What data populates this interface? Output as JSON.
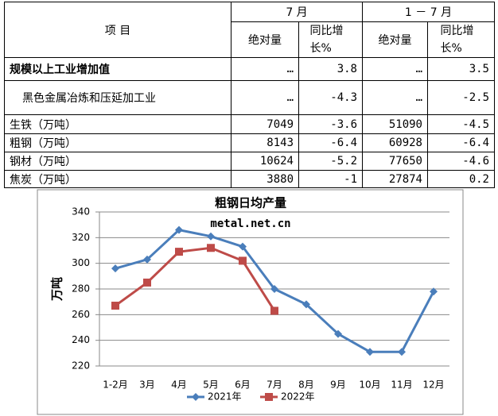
{
  "table": {
    "header": {
      "item": "项 目",
      "groups": [
        "7 月",
        "1 － 7 月"
      ],
      "columns": [
        "绝对量",
        "同比增长%",
        "绝对量",
        "同比增长%"
      ]
    },
    "rows": [
      [
        "规模以上工业增加值",
        "…",
        "3.8",
        "…",
        "3.5"
      ],
      [
        "黑色金属冶炼和压延加工业",
        "…",
        "-4.3",
        "…",
        "-2.5"
      ],
      [
        "生铁（万吨）",
        "7049",
        "-3.6",
        "51090",
        "-4.5"
      ],
      [
        "粗钢（万吨）",
        "8143",
        "-6.4",
        "60928",
        "-6.4"
      ],
      [
        "钢材（万吨）",
        "10624",
        "-5.2",
        "77650",
        "-4.6"
      ],
      [
        "焦炭（万吨）",
        "3880",
        "-1",
        "27874",
        "0.2"
      ]
    ]
  },
  "chart_data": {
    "type": "line",
    "title": "粗钢日均产量",
    "subtitle": "metal.net.cn",
    "ylabel": "万吨",
    "categories": [
      "1-2月",
      "3月",
      "4月",
      "5月",
      "6月",
      "7月",
      "8月",
      "9月",
      "10月",
      "11月",
      "12月"
    ],
    "series": [
      {
        "name": "2021年",
        "color": "#4a7ebb",
        "marker": "diamond",
        "values": [
          296,
          303,
          326,
          321,
          313,
          280,
          268,
          245,
          231,
          231,
          278
        ]
      },
      {
        "name": "2022年",
        "color": "#be4b48",
        "marker": "square",
        "values": [
          267,
          285,
          309,
          312,
          302,
          263,
          null,
          null,
          null,
          null,
          null
        ]
      }
    ],
    "ylim": [
      220,
      340
    ],
    "yticks": [
      220,
      240,
      260,
      280,
      300,
      320,
      340
    ],
    "grid": true,
    "legend": "bottom"
  }
}
